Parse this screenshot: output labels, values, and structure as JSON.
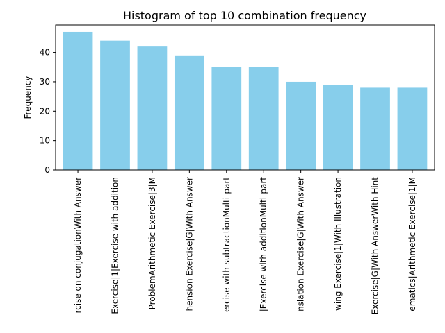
{
  "chart_data": {
    "type": "bar",
    "title": "Histogram of top 10 combination frequency",
    "xlabel": "",
    "ylabel": "Frequency",
    "ylim": [
      0,
      49.35
    ],
    "yticks": [
      0,
      10,
      20,
      30,
      40
    ],
    "bar_color": "#87CEEB",
    "categories": [
      "rcise on conjugationWith Answer",
      "Exercise|1|Exercise with addition",
      "ProblemArithmetic Exercise|3|M",
      "hension Exercise|G|With Answer",
      "ercise with subtractionMulti-part",
      "|Exercise with additionMulti-part",
      "nslation Exercise|G|With Answer",
      "wing Exercise|1|With Illustration",
      "Exercise|G|With AnswerWith Hint",
      "ematics|Arithmetic Exercise|1|M"
    ],
    "values": [
      47,
      44,
      42,
      39,
      35,
      35,
      30,
      29,
      28,
      28
    ]
  }
}
